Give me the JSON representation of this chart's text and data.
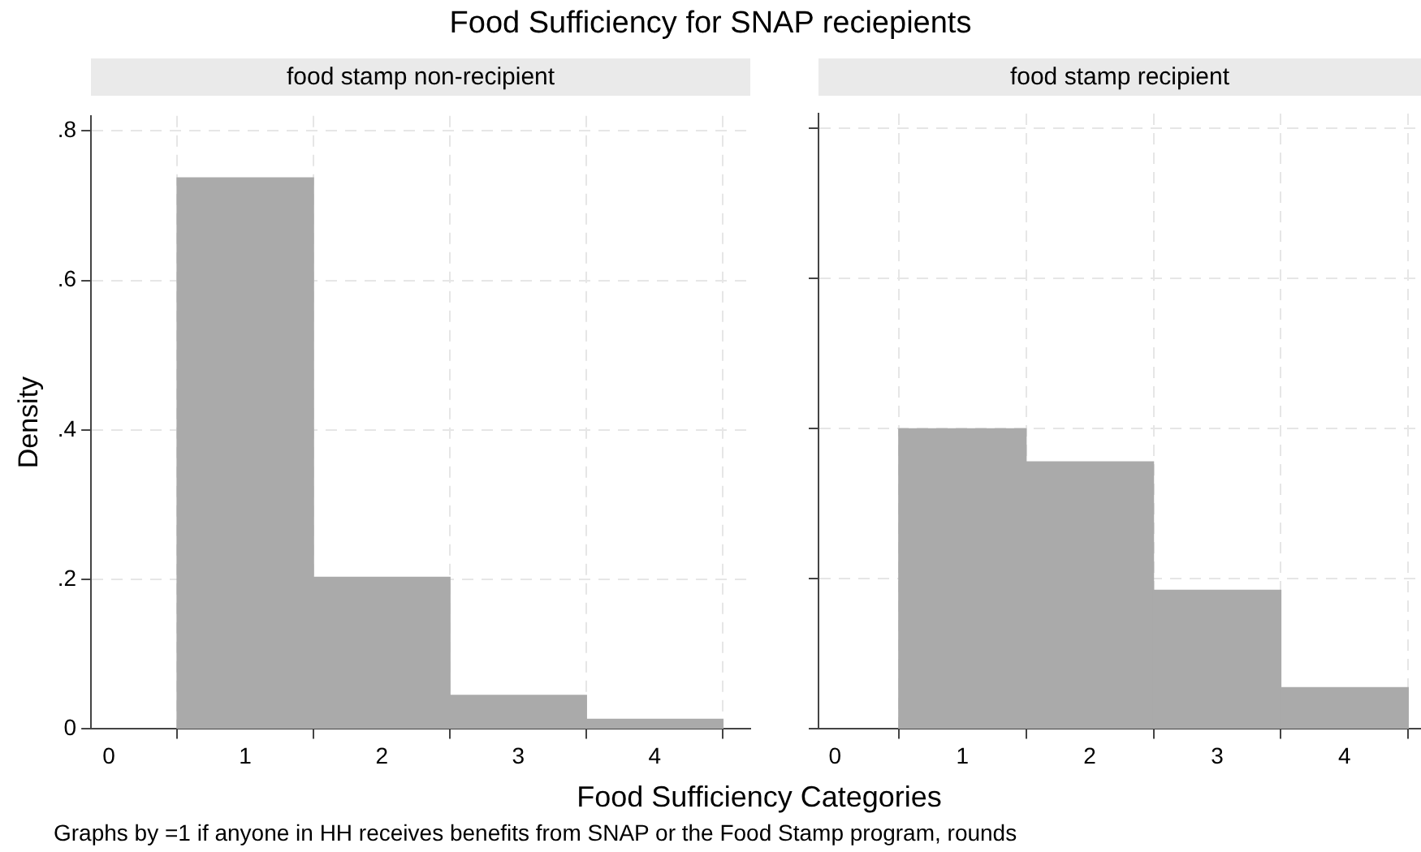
{
  "chart_data": [
    {
      "type": "histogram",
      "title": "Food Sufficiency for SNAP reciepients",
      "subtitle": "food stamp non-recipient",
      "xlabel": "Food Sufficiency Categories",
      "ylabel": "Density",
      "annotations": [
        "Graphs by =1 if anyone in HH receives benefits from SNAP or the Food Stamp program, rounds"
      ],
      "bins": [
        0.5,
        1.5,
        2.5,
        3.5,
        4.5
      ],
      "values": [
        0.737,
        0.203,
        0.045,
        0.013
      ],
      "color": "#aaaaaa",
      "xlim": [
        -0.13,
        4.7
      ],
      "xticks": [
        0,
        1,
        2,
        3,
        4
      ],
      "ylim": [
        0,
        0.82
      ],
      "yticks": [
        {
          "value": 0,
          "label": "0"
        },
        {
          "value": 0.2,
          "label": ".2"
        },
        {
          "value": 0.4,
          "label": ".4"
        },
        {
          "value": 0.6,
          "label": ".6"
        },
        {
          "value": 0.8,
          "label": ".8"
        }
      ],
      "grid": true,
      "legend": false
    },
    {
      "type": "histogram",
      "subtitle": "food stamp recipient",
      "bins": [
        0.5,
        1.5,
        2.5,
        3.5,
        4.5
      ],
      "values": [
        0.4,
        0.356,
        0.185,
        0.055
      ],
      "color": "#aaaaaa",
      "xlim": [
        -0.13,
        4.6
      ],
      "xticks": [
        0,
        1,
        2,
        3,
        4
      ],
      "ylim": [
        0,
        0.82
      ],
      "yticks": [
        {
          "value": 0,
          "label": null
        },
        {
          "value": 0.2,
          "label": null
        },
        {
          "value": 0.4,
          "label": null
        },
        {
          "value": 0.6,
          "label": null
        },
        {
          "value": 0.8,
          "label": null
        }
      ],
      "grid": true,
      "legend": false,
      "tick_labels": "x"
    }
  ]
}
